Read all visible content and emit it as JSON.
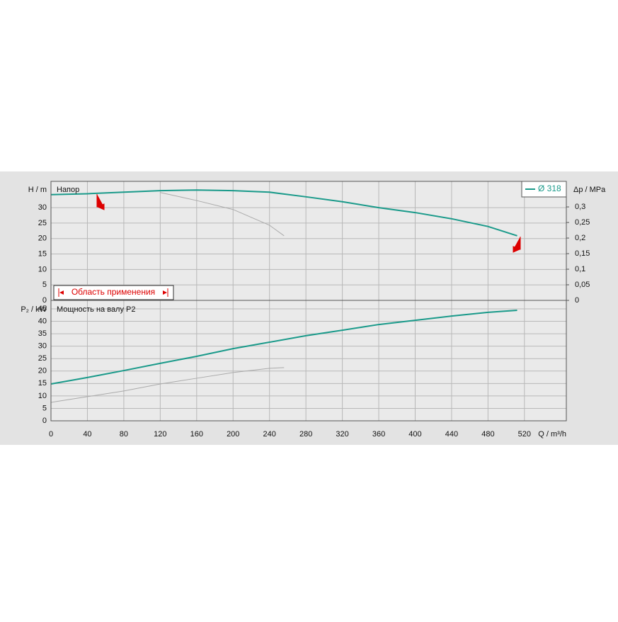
{
  "chart_data": [
    {
      "type": "line",
      "y_label": "H / m",
      "y2_label": "Δp / MPa",
      "annotation": "Напор",
      "range_label": "Область применения",
      "legend": "upper right",
      "grid": true,
      "xlim": [
        0,
        566
      ],
      "ylim": [
        0,
        38.5
      ],
      "yticks": [
        0,
        5,
        10,
        15,
        20,
        25,
        30
      ],
      "y2lim": [
        0,
        0.382
      ],
      "y2ticks": [
        0,
        {
          "value": 0.05,
          "label": "0,05"
        },
        {
          "value": 0.1,
          "label": "0,1"
        },
        {
          "value": 0.15,
          "label": "0,15"
        },
        {
          "value": 0.2,
          "label": "0,2"
        },
        {
          "value": 0.25,
          "label": "0,25"
        },
        {
          "value": 0.3,
          "label": "0,3"
        }
      ],
      "series": [
        {
          "name": "Ø 318",
          "color": "#1a9a8a",
          "x": [
            0,
            40,
            80,
            120,
            160,
            200,
            240,
            280,
            320,
            360,
            400,
            440,
            480,
            512
          ],
          "values": [
            34.2,
            34.5,
            35,
            35.5,
            35.7,
            35.5,
            35,
            33.5,
            31.9,
            30,
            28.4,
            26.4,
            23.9,
            20.9
          ]
        },
        {
          "color": "#aaaaaa",
          "x": [
            120,
            160,
            200,
            240,
            256
          ],
          "values": [
            34.9,
            32.3,
            29.4,
            24.3,
            20.9
          ]
        }
      ]
    },
    {
      "type": "line",
      "y_label": "P₂ / kW",
      "x_label": "Q / m³/h",
      "annotation": "Мощность на валу P2",
      "grid": true,
      "xlim": [
        0,
        566
      ],
      "xticks": [
        0,
        40,
        80,
        120,
        160,
        200,
        240,
        280,
        320,
        360,
        400,
        440,
        480,
        520
      ],
      "ylim": [
        0,
        48.4
      ],
      "yticks": [
        0,
        5,
        10,
        15,
        20,
        25,
        30,
        35,
        40,
        45
      ],
      "series": [
        {
          "color": "#1a9a8a",
          "x": [
            0,
            40,
            80,
            120,
            160,
            200,
            240,
            280,
            320,
            360,
            400,
            440,
            480,
            512
          ],
          "values": [
            14.8,
            17.4,
            20.2,
            23.1,
            25.9,
            29,
            31.6,
            34.2,
            36.4,
            38.7,
            40.4,
            42.1,
            43.6,
            44.4
          ]
        },
        {
          "color": "#aaaaaa",
          "x": [
            0,
            40,
            80,
            120,
            160,
            200,
            240,
            256
          ],
          "values": [
            7.4,
            9.7,
            12,
            14.8,
            17.1,
            19.4,
            21.1,
            21.4
          ]
        }
      ]
    }
  ]
}
